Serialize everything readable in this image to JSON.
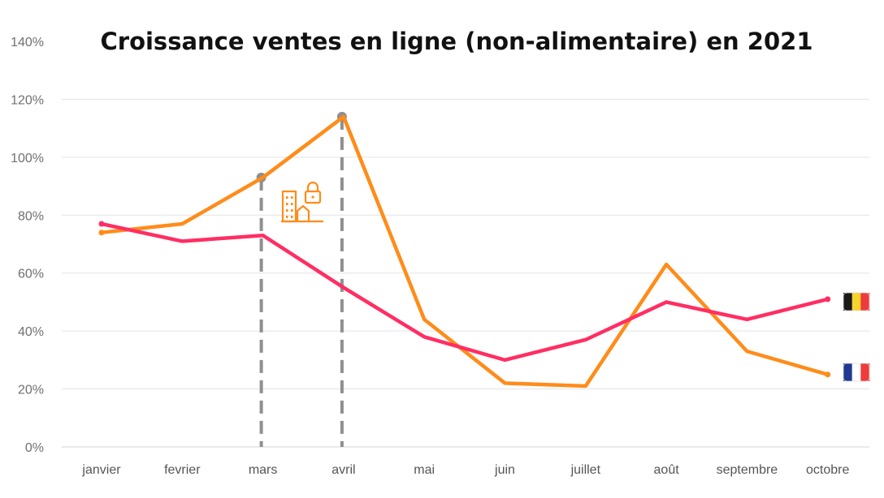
{
  "chart_data": {
    "type": "line",
    "title": "Croissance ventes en ligne (non-alimentaire) en 2021",
    "xlabel": "",
    "ylabel": "",
    "ylim": [
      0,
      140
    ],
    "y_ticks": [
      "0%",
      "20%",
      "40%",
      "60%",
      "80%",
      "100%",
      "120%",
      "140%"
    ],
    "y_tick_values": [
      0,
      20,
      40,
      60,
      80,
      100,
      120,
      140
    ],
    "categories": [
      "janvier",
      "fevrier",
      "mars",
      "avril",
      "mai",
      "juin",
      "juillet",
      "août",
      "septembre",
      "octobre"
    ],
    "grid": true,
    "series": [
      {
        "name": "",
        "flag": "belgium",
        "color": "#ff2e63",
        "values": [
          77,
          71,
          73,
          55,
          38,
          30,
          37,
          50,
          44,
          51
        ]
      },
      {
        "name": "",
        "flag": "france",
        "color": "#ff8c1a",
        "values": [
          74,
          77,
          93,
          114,
          44,
          22,
          21,
          63,
          33,
          25
        ]
      }
    ],
    "annotations": [
      {
        "type": "vertical-dashed-line",
        "category": "mars",
        "value": 93
      },
      {
        "type": "vertical-dashed-line",
        "category": "avril",
        "value": 114
      },
      {
        "type": "icon",
        "icon": "lockdown-building-icon",
        "color": "#ff8c1a"
      }
    ],
    "legend_placement": "right"
  },
  "colors": {
    "grid": "#e3e3e3",
    "dashed_line": "#8f8f8f",
    "belgium_flag": [
      "#1a1a1a",
      "#f6d32d",
      "#ee3b3b"
    ],
    "france_flag": [
      "#1f3a93",
      "#ffffff",
      "#ee3b3b"
    ]
  }
}
